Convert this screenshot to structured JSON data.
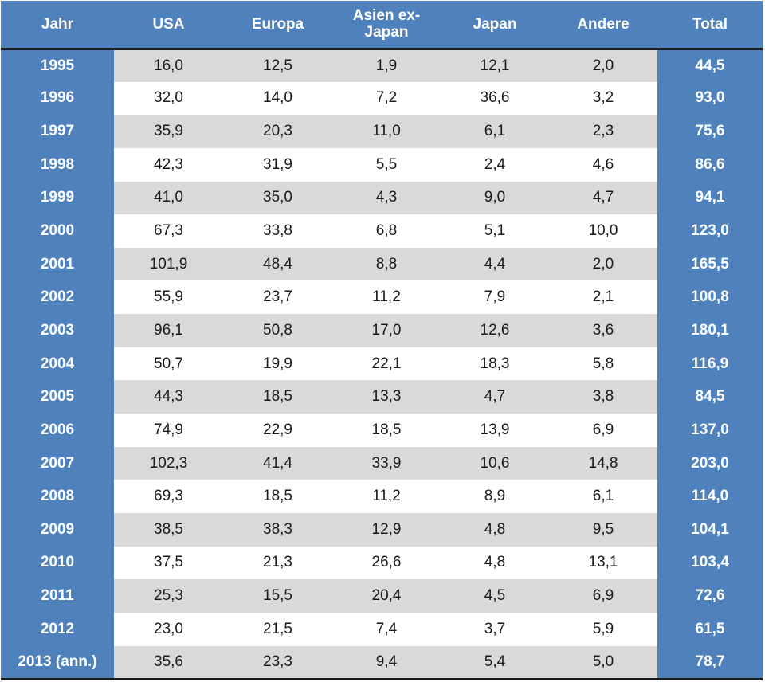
{
  "table": {
    "headers": [
      "Jahr",
      "USA",
      "Europa",
      "Asien ex-Japan",
      "Japan",
      "Andere",
      "Total"
    ],
    "rows": [
      [
        "1995",
        "16,0",
        "12,5",
        "1,9",
        "12,1",
        "2,0",
        "44,5"
      ],
      [
        "1996",
        "32,0",
        "14,0",
        "7,2",
        "36,6",
        "3,2",
        "93,0"
      ],
      [
        "1997",
        "35,9",
        "20,3",
        "11,0",
        "6,1",
        "2,3",
        "75,6"
      ],
      [
        "1998",
        "42,3",
        "31,9",
        "5,5",
        "2,4",
        "4,6",
        "86,6"
      ],
      [
        "1999",
        "41,0",
        "35,0",
        "4,3",
        "9,0",
        "4,7",
        "94,1"
      ],
      [
        "2000",
        "67,3",
        "33,8",
        "6,8",
        "5,1",
        "10,0",
        "123,0"
      ],
      [
        "2001",
        "101,9",
        "48,4",
        "8,8",
        "4,4",
        "2,0",
        "165,5"
      ],
      [
        "2002",
        "55,9",
        "23,7",
        "11,2",
        "7,9",
        "2,1",
        "100,8"
      ],
      [
        "2003",
        "96,1",
        "50,8",
        "17,0",
        "12,6",
        "3,6",
        "180,1"
      ],
      [
        "2004",
        "50,7",
        "19,9",
        "22,1",
        "18,3",
        "5,8",
        "116,9"
      ],
      [
        "2005",
        "44,3",
        "18,5",
        "13,3",
        "4,7",
        "3,8",
        "84,5"
      ],
      [
        "2006",
        "74,9",
        "22,9",
        "18,5",
        "13,9",
        "6,9",
        "137,0"
      ],
      [
        "2007",
        "102,3",
        "41,4",
        "33,9",
        "10,6",
        "14,8",
        "203,0"
      ],
      [
        "2008",
        "69,3",
        "18,5",
        "11,2",
        "8,9",
        "6,1",
        "114,0"
      ],
      [
        "2009",
        "38,5",
        "38,3",
        "12,9",
        "4,8",
        "9,5",
        "104,1"
      ],
      [
        "2010",
        "37,5",
        "21,3",
        "26,6",
        "4,8",
        "13,1",
        "103,4"
      ],
      [
        "2011",
        "25,3",
        "15,5",
        "20,4",
        "4,5",
        "6,9",
        "72,6"
      ],
      [
        "2012",
        "23,0",
        "21,5",
        "7,4",
        "3,7",
        "5,9",
        "61,5"
      ],
      [
        "2013 (ann.)",
        "35,6",
        "23,3",
        "9,4",
        "5,4",
        "5,0",
        "78,7"
      ]
    ]
  },
  "colors": {
    "header_blue": "#4f81bd",
    "stripe_gray": "#d9d9d9",
    "white": "#ffffff",
    "rule": "#1b1b1b"
  }
}
